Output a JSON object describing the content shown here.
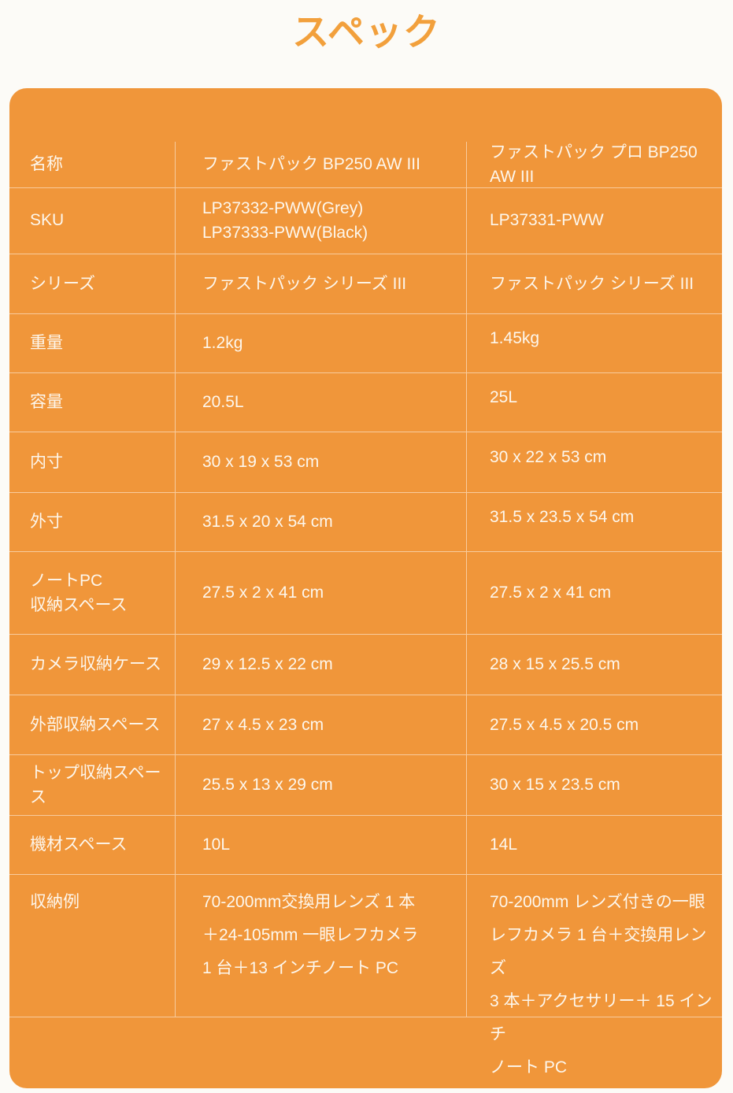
{
  "page": {
    "title": "スペック"
  },
  "colors": {
    "panel_orange": "#F0963A",
    "title_orange": "#F2A03C",
    "page_background": "#FCFBF7",
    "divider": "rgba(255,255,255,0.5)",
    "text_on_orange": "#FDF7ED"
  },
  "spec_table": {
    "rows": [
      {
        "label": "名称",
        "product_1": "ファストパック BP250 AW III",
        "product_2": "ファストパック プロ BP250 AW III"
      },
      {
        "label": "SKU",
        "product_1": "LP37332-PWW(Grey)\nLP37333-PWW(Black)",
        "product_2": "LP37331-PWW"
      },
      {
        "label": "シリーズ",
        "product_1": "ファストパック シリーズ III",
        "product_2": "ファストパック シリーズ III"
      },
      {
        "label": "重量",
        "product_1": "1.2kg",
        "product_2": "1.45kg"
      },
      {
        "label": "容量",
        "product_1": "20.5L",
        "product_2": "25L"
      },
      {
        "label": "内寸",
        "product_1": "30 x 19 x 53 cm",
        "product_2": "30 x 22 x 53 cm"
      },
      {
        "label": "外寸",
        "product_1": "31.5 x 20 x 54 cm",
        "product_2": "31.5 x 23.5 x 54 cm"
      },
      {
        "label": "ノートPC\n収納スペース",
        "product_1": "27.5 x 2 x 41 cm",
        "product_2": "27.5 x 2 x 41 cm"
      },
      {
        "label": "カメラ収納ケース",
        "product_1": "29 x 12.5 x 22 cm",
        "product_2": "28 x 15 x 25.5 cm"
      },
      {
        "label": "外部収納スペース",
        "product_1": "27 x 4.5 x 23 cm",
        "product_2": "27.5 x 4.5 x 20.5 cm"
      },
      {
        "label": "トップ収納スペース",
        "product_1": "25.5 x 13 x 29 cm",
        "product_2": "30 x 15 x 23.5 cm"
      },
      {
        "label": "機材スペース",
        "product_1": "10L",
        "product_2": "14L"
      },
      {
        "label": "収納例",
        "product_1": "70-200mm交換用レンズ 1 本\n＋24-105mm 一眼レフカメラ\n1 台＋13 インチノート PC",
        "product_2": "70-200mm レンズ付きの一眼\nレフカメラ 1 台＋交換用レンズ\n3 本＋アクセサリー＋ 15 インチ\nノート PC"
      }
    ]
  }
}
